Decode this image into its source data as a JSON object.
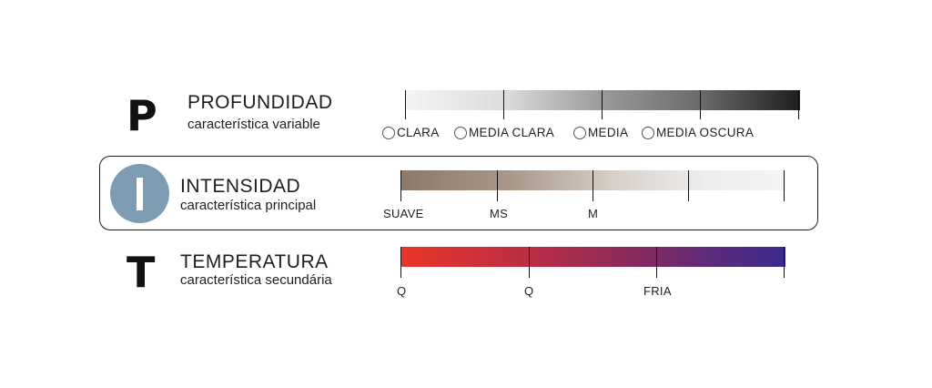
{
  "profundidad": {
    "letter": "P",
    "title": "PROFUNDIDAD",
    "subtitle": "característica variable",
    "options": [
      "CLARA",
      "MEDIA CLARA",
      "MEDIA",
      "MEDIA OSCURA"
    ],
    "gradient": [
      "#f4f4f4",
      "#1e1e1e"
    ]
  },
  "intensidad": {
    "letter": "I",
    "title": "INTENSIDAD",
    "subtitle": "característica principal",
    "labels": [
      "SUAVE",
      "MS",
      "M"
    ],
    "circle_color": "#7e9cb1",
    "gradient": [
      "#8d7868",
      "#f4f4f4"
    ]
  },
  "temperatura": {
    "letter": "T",
    "title": "TEMPERATURA",
    "subtitle": "característica secundária",
    "labels": [
      "Q",
      "Q",
      "FRIA"
    ],
    "gradient": [
      "#e8352a",
      "#8a2a5c",
      "#3b2a8e"
    ]
  }
}
